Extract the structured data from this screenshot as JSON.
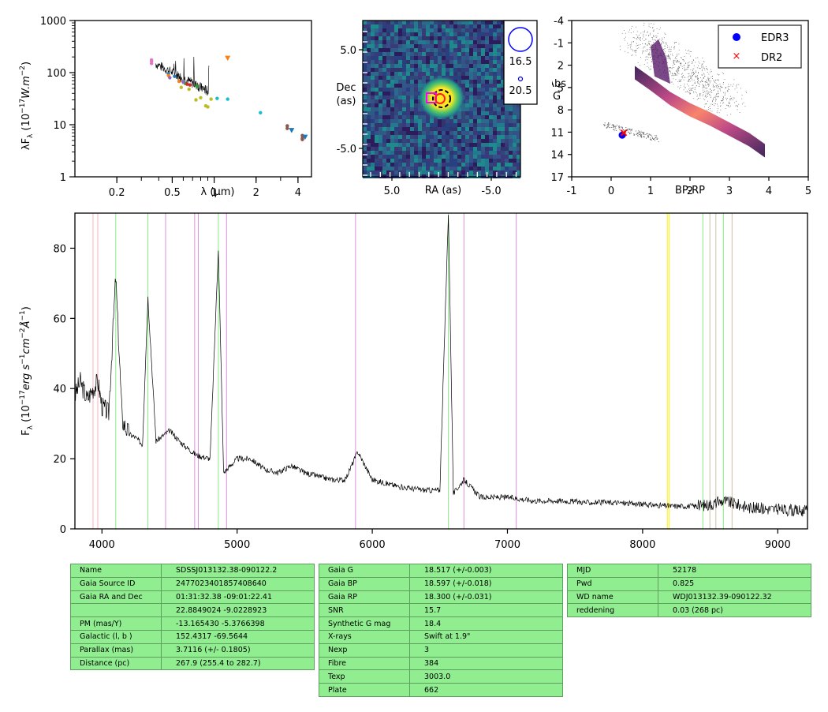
{
  "sed": {
    "xlabel": "λ (μm)",
    "ylabel": "λF",
    "ylabel_sub": "λ",
    "ylabel_unit": "(10",
    "ylabel_exp": "−17",
    "ylabel_tail": "W.m",
    "ylabel_exp2": "−2",
    "ylabel_close": ")",
    "xticks": [
      "0.2",
      "0.5",
      "1",
      "2",
      "4"
    ],
    "yticks": [
      "1",
      "10",
      "100",
      "1000"
    ]
  },
  "image": {
    "xlabel": "RA (as)",
    "ylabel_1": "Dec",
    "ylabel_2": "(as)",
    "xticks": [
      "5.0",
      "-5.0"
    ],
    "yticks": [
      "5.0",
      "-5.0"
    ],
    "legend": [
      "16.5",
      "20.5"
    ]
  },
  "cmd": {
    "xlabel": "BP-RP",
    "ylabel_1": "Abs",
    "ylabel_2": "G",
    "xticks": [
      "-1",
      "0",
      "1",
      "2",
      "3",
      "4",
      "5"
    ],
    "yticks": [
      "-4",
      "-1",
      "2",
      "5",
      "8",
      "11",
      "14",
      "17"
    ],
    "legend": [
      {
        "label": "EDR3",
        "color": "#0000ff"
      },
      {
        "label": "DR2",
        "color": "#ff0000"
      }
    ]
  },
  "chart_data": [
    {
      "type": "scatter",
      "title": "",
      "xlabel": "λ (μm)",
      "ylabel": "λFλ (10^-17 W.m^-2)",
      "xscale": "log",
      "yscale": "log",
      "xlim": [
        0.1,
        5
      ],
      "ylim": [
        1,
        1000
      ],
      "series": [
        {
          "color": "#e377c2",
          "x": [
            0.355,
            0.355,
            0.355
          ],
          "y": [
            150,
            165,
            175
          ]
        },
        {
          "color": "#1f77b4",
          "x": [
            0.47,
            0.52
          ],
          "y": [
            95,
            85
          ]
        },
        {
          "color": "#ff7f0e",
          "x": [
            0.47,
            0.56
          ],
          "y": [
            88,
            68
          ]
        },
        {
          "color": "#2ca02c",
          "x": [
            0.62,
            0.75
          ],
          "y": [
            62,
            55
          ]
        },
        {
          "color": "#9467bd",
          "x": [
            0.48,
            0.6
          ],
          "y": [
            80,
            66
          ]
        },
        {
          "color": "#d62728",
          "x": [
            0.64,
            0.67
          ],
          "y": [
            60,
            58
          ]
        },
        {
          "color": "#bcbd22",
          "x": [
            0.58,
            0.66,
            0.74,
            0.8,
            0.87,
            0.9,
            0.95
          ],
          "y": [
            52,
            48,
            30,
            33,
            23,
            22,
            31
          ]
        },
        {
          "color": "#17becf",
          "x": [
            1.05,
            1.25,
            2.15
          ],
          "y": [
            32,
            31,
            17
          ]
        },
        {
          "color": "#8c564b",
          "x": [
            3.35,
            3.35,
            4.3,
            4.3,
            4.3
          ],
          "y": [
            8.5,
            9.5,
            5.2,
            5.5,
            6.2
          ]
        },
        {
          "color": "#1f77b4",
          "marker": "triangle",
          "x": [
            3.6,
            4.5
          ],
          "y": [
            7.8,
            5.8
          ]
        },
        {
          "color": "#ff7f0e",
          "marker": "triangle",
          "x": [
            1.25
          ],
          "y": [
            190
          ]
        }
      ]
    },
    {
      "type": "scatter",
      "title": "",
      "xlabel": "BP-RP",
      "ylabel": "Abs G",
      "xlim": [
        -1,
        5
      ],
      "ylim": [
        17,
        -4
      ],
      "series": [
        {
          "name": "EDR3",
          "color": "#0000ff",
          "x": [
            0.28
          ],
          "y": [
            11.4
          ]
        },
        {
          "name": "DR2",
          "color": "#ff0000",
          "x": [
            0.32
          ],
          "y": [
            11.1
          ]
        }
      ]
    },
    {
      "type": "line",
      "title": "",
      "xlabel": "",
      "ylabel": "Fλ (10^-17 erg s^-1 cm^-2 Å^-1)",
      "xlim": [
        3800,
        9220
      ],
      "ylim": [
        0,
        90
      ],
      "xticks": [
        4000,
        5000,
        6000,
        7000,
        8000,
        9000
      ],
      "yticks": [
        0,
        20,
        40,
        60,
        80
      ],
      "x": [
        3800,
        3840,
        3890,
        3935,
        3970,
        4000,
        4050,
        4102,
        4150,
        4200,
        4250,
        4300,
        4340,
        4400,
        4500,
        4600,
        4700,
        4800,
        4861,
        4900,
        5000,
        5100,
        5200,
        5300,
        5400,
        5500,
        5600,
        5700,
        5800,
        5893,
        6000,
        6200,
        6400,
        6500,
        6563,
        6600,
        6678,
        6800,
        7000,
        7200,
        7400,
        7600,
        7800,
        8000,
        8200,
        8400,
        8500,
        8600,
        8700,
        8800,
        9000,
        9220
      ],
      "y": [
        38,
        42,
        37,
        40,
        42,
        35,
        33,
        72,
        31,
        27,
        26,
        24,
        66,
        25,
        28,
        24,
        21,
        20,
        80,
        16,
        20,
        20,
        17,
        16,
        18,
        16,
        15,
        14,
        14,
        22,
        14,
        12,
        11,
        11,
        90,
        10,
        14,
        9,
        9,
        8,
        8,
        7.5,
        7.5,
        7,
        6.5,
        6.5,
        7,
        8,
        7,
        6,
        5.5,
        5
      ],
      "lines": [
        {
          "x": 3934,
          "color": "#ffb6c1"
        },
        {
          "x": 3969,
          "color": "#ffb6c1"
        },
        {
          "x": 4102,
          "color": "#90ee90"
        },
        {
          "x": 4340,
          "color": "#90ee90"
        },
        {
          "x": 4471,
          "color": "#dd99dd"
        },
        {
          "x": 4686,
          "color": "#dd99dd"
        },
        {
          "x": 4713,
          "color": "#dd99dd"
        },
        {
          "x": 4861,
          "color": "#90ee90"
        },
        {
          "x": 4922,
          "color": "#dd99dd"
        },
        {
          "x": 5876,
          "color": "#dd99dd"
        },
        {
          "x": 6563,
          "color": "#90ee90"
        },
        {
          "x": 6678,
          "color": "#dd99dd"
        },
        {
          "x": 7065,
          "color": "#dd99dd"
        },
        {
          "x": 8183,
          "color": "#ffee22"
        },
        {
          "x": 8195,
          "color": "#ffee22"
        },
        {
          "x": 8446,
          "color": "#90ee90"
        },
        {
          "x": 8498,
          "color": "#d2c5b0"
        },
        {
          "x": 8542,
          "color": "#d2c5b0"
        },
        {
          "x": 8598,
          "color": "#90ee90"
        },
        {
          "x": 8662,
          "color": "#d2c5b0"
        }
      ]
    }
  ],
  "spec_labels": {
    "pre": "F",
    "sub": "λ",
    "unit1": " (10",
    "exp1": "−17",
    "unit2": "erg s",
    "exp2": "−1",
    "unit3": "cm",
    "exp3": "−2",
    "unit4": "Å",
    "exp4": "−1",
    "unit5": ")"
  },
  "tables": [
    [
      [
        "Name",
        "SDSSJ013132.38-090122.2"
      ],
      [
        "Gaia Source ID",
        "2477023401857408640"
      ],
      [
        "Gaia RA and Dec",
        "01:31:32.38    -09:01:22.41"
      ],
      [
        "",
        "22.8849024    -9.0228923"
      ],
      [
        "PM (mas/Y)",
        "-13.165430    -5.3766398"
      ],
      [
        "Galactic (l, b )",
        "152.4317    -69.5644"
      ],
      [
        "Parallax (mas)",
        "3.7116 (+/- 0.1805)"
      ],
      [
        "Distance (pc)",
        "267.9 (255.4 to 282.7)"
      ]
    ],
    [
      [
        "Gaia G",
        "18.517 (+/-0.003)"
      ],
      [
        "Gaia BP",
        "18.597 (+/-0.018)"
      ],
      [
        "Gaia RP",
        "18.300 (+/-0.031)"
      ],
      [
        "SNR",
        "15.7"
      ],
      [
        "Synthetic G mag",
        "18.4"
      ],
      [
        "X-rays",
        "Swift at 1.9\""
      ],
      [
        "Nexp",
        "3"
      ],
      [
        "Fibre",
        "384"
      ],
      [
        "Texp",
        "3003.0"
      ],
      [
        "Plate",
        "662"
      ]
    ],
    [
      [
        "MJD",
        "52178"
      ],
      [
        "Pwd",
        "0.825"
      ],
      [
        "WD name",
        "WDJ013132.39-090122.32"
      ],
      [
        "reddening",
        "0.03 (268 pc)"
      ]
    ]
  ]
}
